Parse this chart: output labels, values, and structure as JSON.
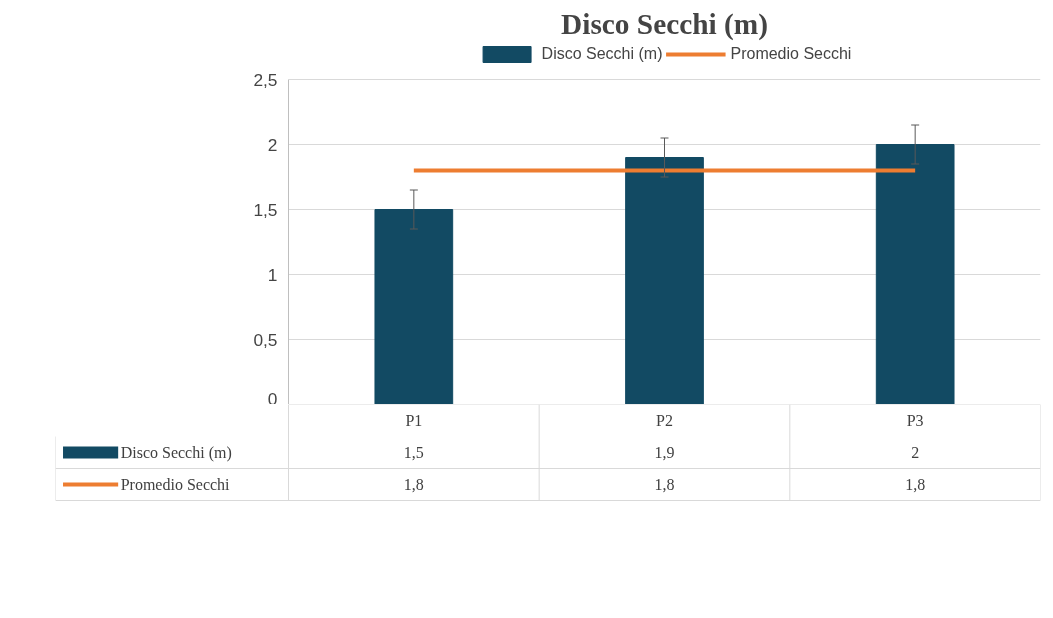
{
  "chart_data": {
    "type": "bar",
    "title": "Disco Secchi (m)",
    "categories": [
      "P1",
      "P2",
      "P3"
    ],
    "series": [
      {
        "name": "Disco Secchi (m)",
        "color": "#124a63",
        "values": [
          1.5,
          1.9,
          2
        ],
        "errors": [
          0.15,
          0.15,
          0.15
        ],
        "value_labels": [
          "1,5",
          "1,9",
          "2"
        ]
      },
      {
        "name": "Promedio Secchi",
        "type": "line",
        "color": "#ed7d31",
        "values": [
          1.8,
          1.8,
          1.8
        ],
        "value_labels": [
          "1,8",
          "1,8",
          "1,8"
        ]
      }
    ],
    "ylim": [
      0,
      2.5
    ],
    "yticks": [
      0,
      {
        "value": 0.5,
        "label": "0,5"
      },
      1,
      {
        "value": 1.5,
        "label": "1,5"
      },
      2,
      {
        "value": 2.5,
        "label": "2,5"
      }
    ],
    "grid": "y",
    "legend": "top",
    "tick_labels": "y",
    "data_labels": true
  }
}
